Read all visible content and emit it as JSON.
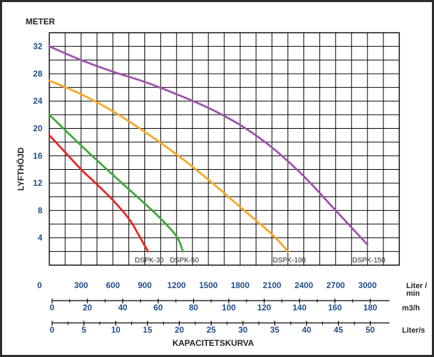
{
  "chart_data": {
    "type": "line",
    "title": "",
    "y_unit_label": "METER",
    "ylabel": "LYFTHÖJD",
    "xlabel": "KAPACITETSKURVA",
    "ylim": [
      0,
      34
    ],
    "yticks": [
      "4",
      "8",
      "12",
      "16",
      "20",
      "24",
      "28",
      "32"
    ],
    "xlim": [
      0,
      3300
    ],
    "x_unit": "Liter / min",
    "grid": true,
    "x_axes": [
      {
        "unit": "Liter / min",
        "ticks": [
          "0",
          "300",
          "600",
          "900",
          "1200",
          "1500",
          "1800",
          "2100",
          "2400",
          "2700",
          "3000"
        ]
      },
      {
        "unit": "m3/h",
        "ticks": [
          "0",
          "20",
          "40",
          "60",
          "80",
          "100",
          "120",
          "140",
          "160",
          "180"
        ]
      },
      {
        "unit": "Liter/s",
        "ticks": [
          "0",
          "5",
          "10",
          "15",
          "20",
          "25",
          "30",
          "35",
          "40",
          "45",
          "50"
        ]
      }
    ],
    "series": [
      {
        "name": "DSPK-30",
        "color": "#e8231b",
        "x": [
          0,
          150,
          300,
          450,
          600,
          750,
          840,
          930
        ],
        "y": [
          19,
          16.5,
          14,
          11.8,
          9.5,
          6.8,
          4.5,
          2
        ]
      },
      {
        "name": "DSPK-50",
        "color": "#39a935",
        "x": [
          0,
          300,
          600,
          900,
          1050,
          1200,
          1260
        ],
        "y": [
          22,
          17.5,
          13.2,
          9,
          6.8,
          4.2,
          2
        ]
      },
      {
        "name": "DSPK-100",
        "color": "#f6a623",
        "x": [
          0,
          300,
          600,
          900,
          1200,
          1500,
          1800,
          2100,
          2250
        ],
        "y": [
          27,
          25,
          22.5,
          19.5,
          16.2,
          12.5,
          8.5,
          4.5,
          2
        ]
      },
      {
        "name": "DSPK-150",
        "color": "#a14fb0",
        "x": [
          0,
          300,
          600,
          900,
          1200,
          1500,
          1800,
          2100,
          2400,
          2700,
          3000
        ],
        "y": [
          32,
          30,
          28.3,
          26.8,
          25,
          23,
          20.5,
          17.2,
          13,
          8,
          3
        ]
      }
    ]
  }
}
